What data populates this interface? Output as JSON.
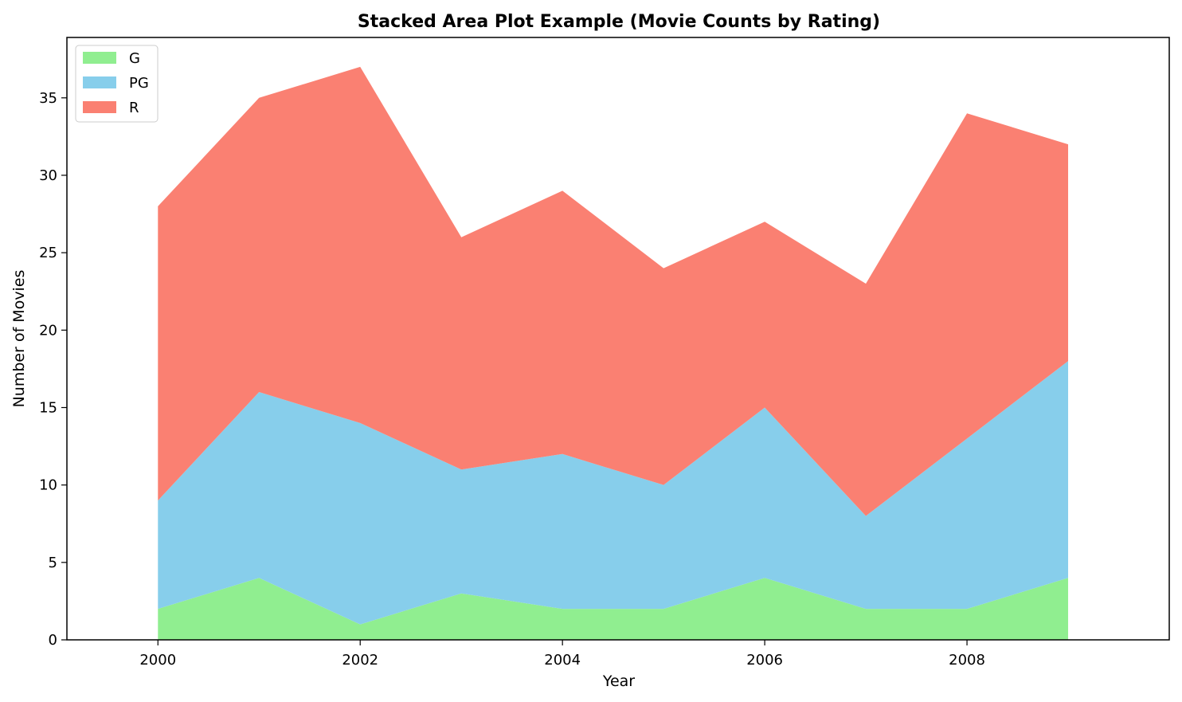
{
  "chart_data": {
    "type": "area",
    "stacked": true,
    "title": "Stacked Area Plot Example (Movie Counts by Rating)",
    "xlabel": "Year",
    "ylabel": "Number of Movies",
    "x": [
      2000,
      2001,
      2002,
      2003,
      2004,
      2005,
      2006,
      2007,
      2008,
      2009
    ],
    "xlim": [
      1999.1,
      2010.0
    ],
    "ylim": [
      0,
      38.9
    ],
    "xticks": [
      2000,
      2002,
      2004,
      2006,
      2008
    ],
    "yticks": [
      0,
      5,
      10,
      15,
      20,
      25,
      30,
      35
    ],
    "grid": false,
    "legend": "top-left",
    "series": [
      {
        "name": "G",
        "color": "#90ee90",
        "values": [
          2,
          4,
          1,
          3,
          2,
          2,
          4,
          2,
          2,
          4
        ]
      },
      {
        "name": "PG",
        "color": "#87ceeb",
        "values": [
          7,
          12,
          13,
          8,
          10,
          8,
          11,
          6,
          11,
          14
        ]
      },
      {
        "name": "R",
        "color": "#fa8072",
        "values": [
          19,
          19,
          23,
          15,
          17,
          14,
          12,
          15,
          21,
          14
        ]
      }
    ]
  }
}
